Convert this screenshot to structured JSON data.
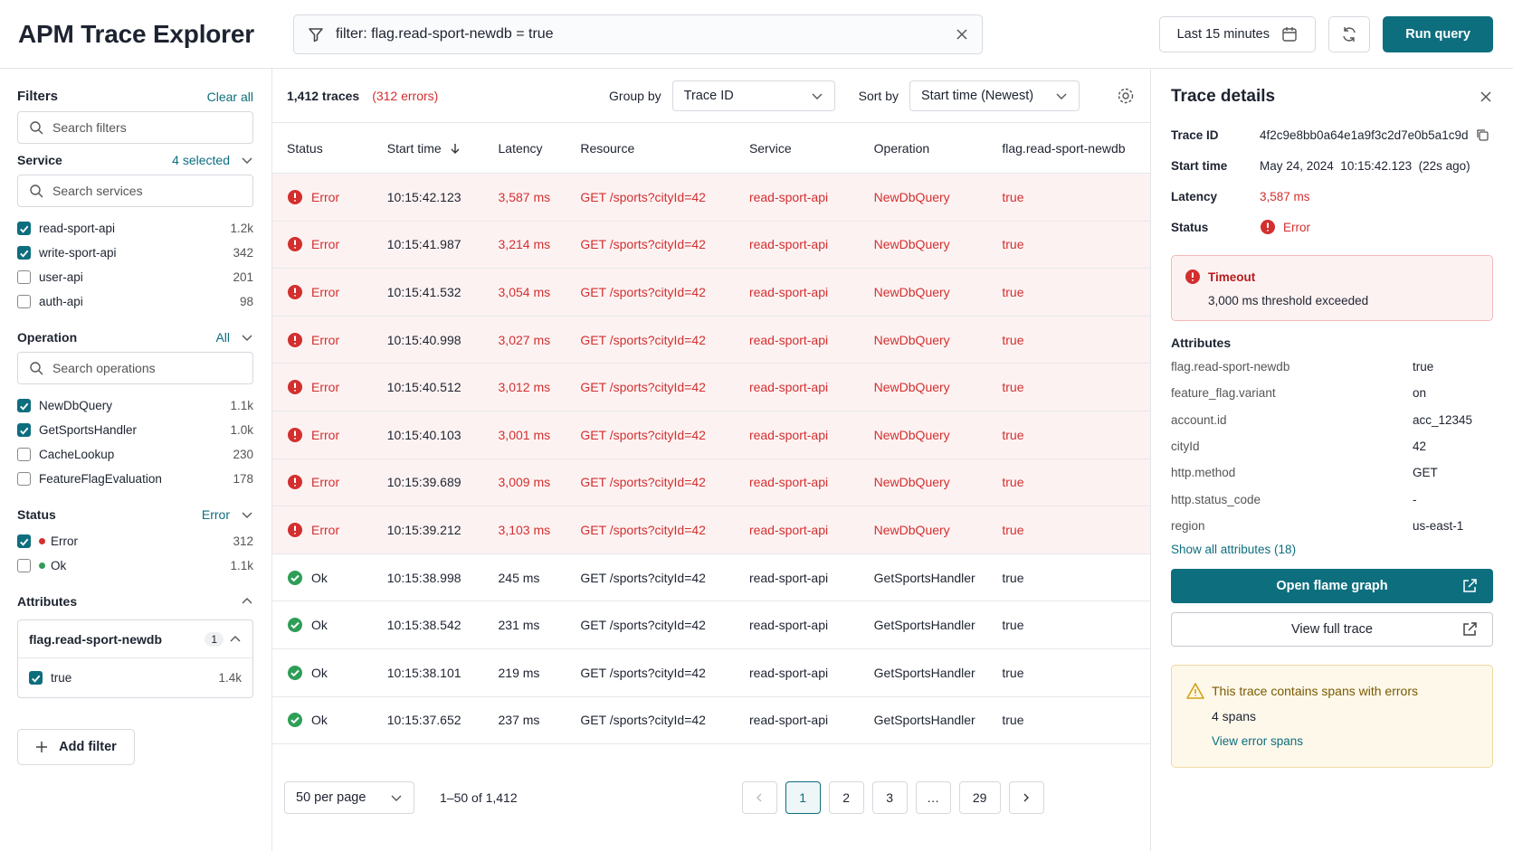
{
  "header": {
    "title": "APM Trace Explorer",
    "filter": "filter: flag.read-sport-newdb = true",
    "time_range": "Last 15 minutes",
    "run": "Run query"
  },
  "sidebar": {
    "title": "Filters",
    "clear": "Clear all",
    "search": "Search filters",
    "groups": [
      {
        "title": "Service",
        "summary": "4 selected",
        "search": "Search services",
        "options": [
          {
            "label": "read-sport-api",
            "count": "1.2k",
            "checked": true
          },
          {
            "label": "write-sport-api",
            "count": "342",
            "checked": true
          },
          {
            "label": "user-api",
            "count": "201",
            "checked": false
          },
          {
            "label": "auth-api",
            "count": "98",
            "checked": false
          }
        ]
      },
      {
        "title": "Operation",
        "summary": "All",
        "search": "Search operations",
        "options": [
          {
            "label": "NewDbQuery",
            "count": "1.1k",
            "checked": true
          },
          {
            "label": "GetSportsHandler",
            "count": "1.0k",
            "checked": true
          },
          {
            "label": "CacheLookup",
            "count": "230",
            "checked": false
          },
          {
            "label": "FeatureFlagEvaluation",
            "count": "178",
            "checked": false
          }
        ]
      },
      {
        "title": "Status",
        "summary": "Error",
        "options": [
          {
            "label": "Error",
            "count": "312",
            "checked": true,
            "dot": "#d32f2f"
          },
          {
            "label": "Ok",
            "count": "1.1k",
            "checked": false,
            "dot": "#2e9e57"
          }
        ]
      }
    ],
    "attributes": {
      "title": "Attributes",
      "key": "flag.read-sport-newdb",
      "badge": "1",
      "options": [
        {
          "label": "true",
          "count": "1.4k",
          "checked": true
        }
      ]
    },
    "add_filter": "Add filter"
  },
  "toolbar": {
    "count": "1,412 traces",
    "errors": "(312 errors)",
    "group_label": "Group by",
    "group_value": "Trace ID",
    "sort_label": "Sort by",
    "sort_value": "Start time (Newest)"
  },
  "table": {
    "columns": [
      "Status",
      "Start time",
      "Latency",
      "Resource",
      "Service",
      "Operation",
      "flag.read-sport-newdb"
    ],
    "rows": [
      [
        "Error",
        "10:15:42.123",
        "3,587 ms",
        "GET /sports?cityId=42",
        "read-sport-api",
        "NewDbQuery",
        "true"
      ],
      [
        "Error",
        "10:15:41.987",
        "3,214 ms",
        "GET /sports?cityId=42",
        "read-sport-api",
        "NewDbQuery",
        "true"
      ],
      [
        "Error",
        "10:15:41.532",
        "3,054 ms",
        "GET /sports?cityId=42",
        "read-sport-api",
        "NewDbQuery",
        "true"
      ],
      [
        "Error",
        "10:15:40.998",
        "3,027 ms",
        "GET /sports?cityId=42",
        "read-sport-api",
        "NewDbQuery",
        "true"
      ],
      [
        "Error",
        "10:15:40.512",
        "3,012 ms",
        "GET /sports?cityId=42",
        "read-sport-api",
        "NewDbQuery",
        "true"
      ],
      [
        "Error",
        "10:15:40.103",
        "3,001 ms",
        "GET /sports?cityId=42",
        "read-sport-api",
        "NewDbQuery",
        "true"
      ],
      [
        "Error",
        "10:15:39.689",
        "3,009 ms",
        "GET /sports?cityId=42",
        "read-sport-api",
        "NewDbQuery",
        "true"
      ],
      [
        "Error",
        "10:15:39.212",
        "3,103 ms",
        "GET /sports?cityId=42",
        "read-sport-api",
        "NewDbQuery",
        "true"
      ],
      [
        "Ok",
        "10:15:38.998",
        "245 ms",
        "GET /sports?cityId=42",
        "read-sport-api",
        "GetSportsHandler",
        "true"
      ],
      [
        "Ok",
        "10:15:38.542",
        "231 ms",
        "GET /sports?cityId=42",
        "read-sport-api",
        "GetSportsHandler",
        "true"
      ],
      [
        "Ok",
        "10:15:38.101",
        "219 ms",
        "GET /sports?cityId=42",
        "read-sport-api",
        "GetSportsHandler",
        "true"
      ],
      [
        "Ok",
        "10:15:37.652",
        "237 ms",
        "GET /sports?cityId=42",
        "read-sport-api",
        "GetSportsHandler",
        "true"
      ]
    ]
  },
  "footer": {
    "per_page": "50 per page",
    "range": "1–50 of 1,412",
    "pages": [
      "1",
      "2",
      "3",
      "…",
      "29"
    ],
    "current_page_index": 0
  },
  "details": {
    "title": "Trace details",
    "fields": [
      {
        "label": "Trace ID",
        "value": "4f2c9e8bb0a64e1a9f3c2d7e0b5a1c9d"
      },
      {
        "label": "Start time",
        "value": "May 24, 2024  10:15:42.123  (22s ago)"
      },
      {
        "label": "Latency",
        "value": "3,587 ms",
        "color": "#d32f2f"
      },
      {
        "label": "Status",
        "value": "Error",
        "color": "#d32f2f"
      }
    ],
    "alert": {
      "title": "Timeout",
      "message": "3,000 ms threshold exceeded"
    },
    "attributes_title": "Attributes",
    "attributes": [
      [
        "flag.read-sport-newdb",
        "true"
      ],
      [
        "feature_flag.variant",
        "on"
      ],
      [
        "account.id",
        "acc_12345"
      ],
      [
        "cityId",
        "42"
      ],
      [
        "http.method",
        "GET"
      ],
      [
        "http.status_code",
        "-"
      ],
      [
        "region",
        "us-east-1"
      ]
    ],
    "show_all": "Show all attributes (18)",
    "flame": "Open flame graph",
    "full": "View full trace",
    "warning": {
      "title": "This trace contains spans with errors",
      "count": "4 spans",
      "link": "View error spans"
    }
  }
}
